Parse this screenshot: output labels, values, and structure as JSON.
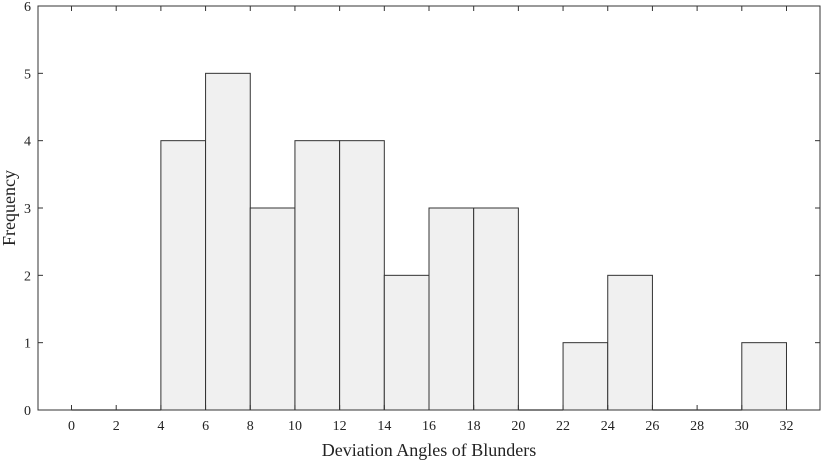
{
  "chart_data": {
    "type": "bar",
    "subtype": "histogram",
    "xlabel": "Deviation Angles of Blunders",
    "ylabel": "Frequency",
    "bin_edges": [
      0,
      2,
      4,
      6,
      8,
      10,
      12,
      14,
      16,
      18,
      20,
      22,
      24,
      26,
      28,
      30,
      32
    ],
    "values": [
      0,
      0,
      4,
      5,
      3,
      4,
      4,
      2,
      3,
      3,
      0,
      1,
      2,
      0,
      0,
      1
    ],
    "xlim": [
      -1.5,
      33.5
    ],
    "ylim": [
      0,
      6
    ],
    "xticks": [
      0,
      2,
      4,
      6,
      8,
      10,
      12,
      14,
      16,
      18,
      20,
      22,
      24,
      26,
      28,
      30,
      32
    ],
    "yticks": [
      0,
      1,
      2,
      3,
      4,
      5,
      6
    ],
    "bar_color": "#f0f0f0",
    "edge_color": "#333333",
    "grid": false,
    "legend": false
  }
}
